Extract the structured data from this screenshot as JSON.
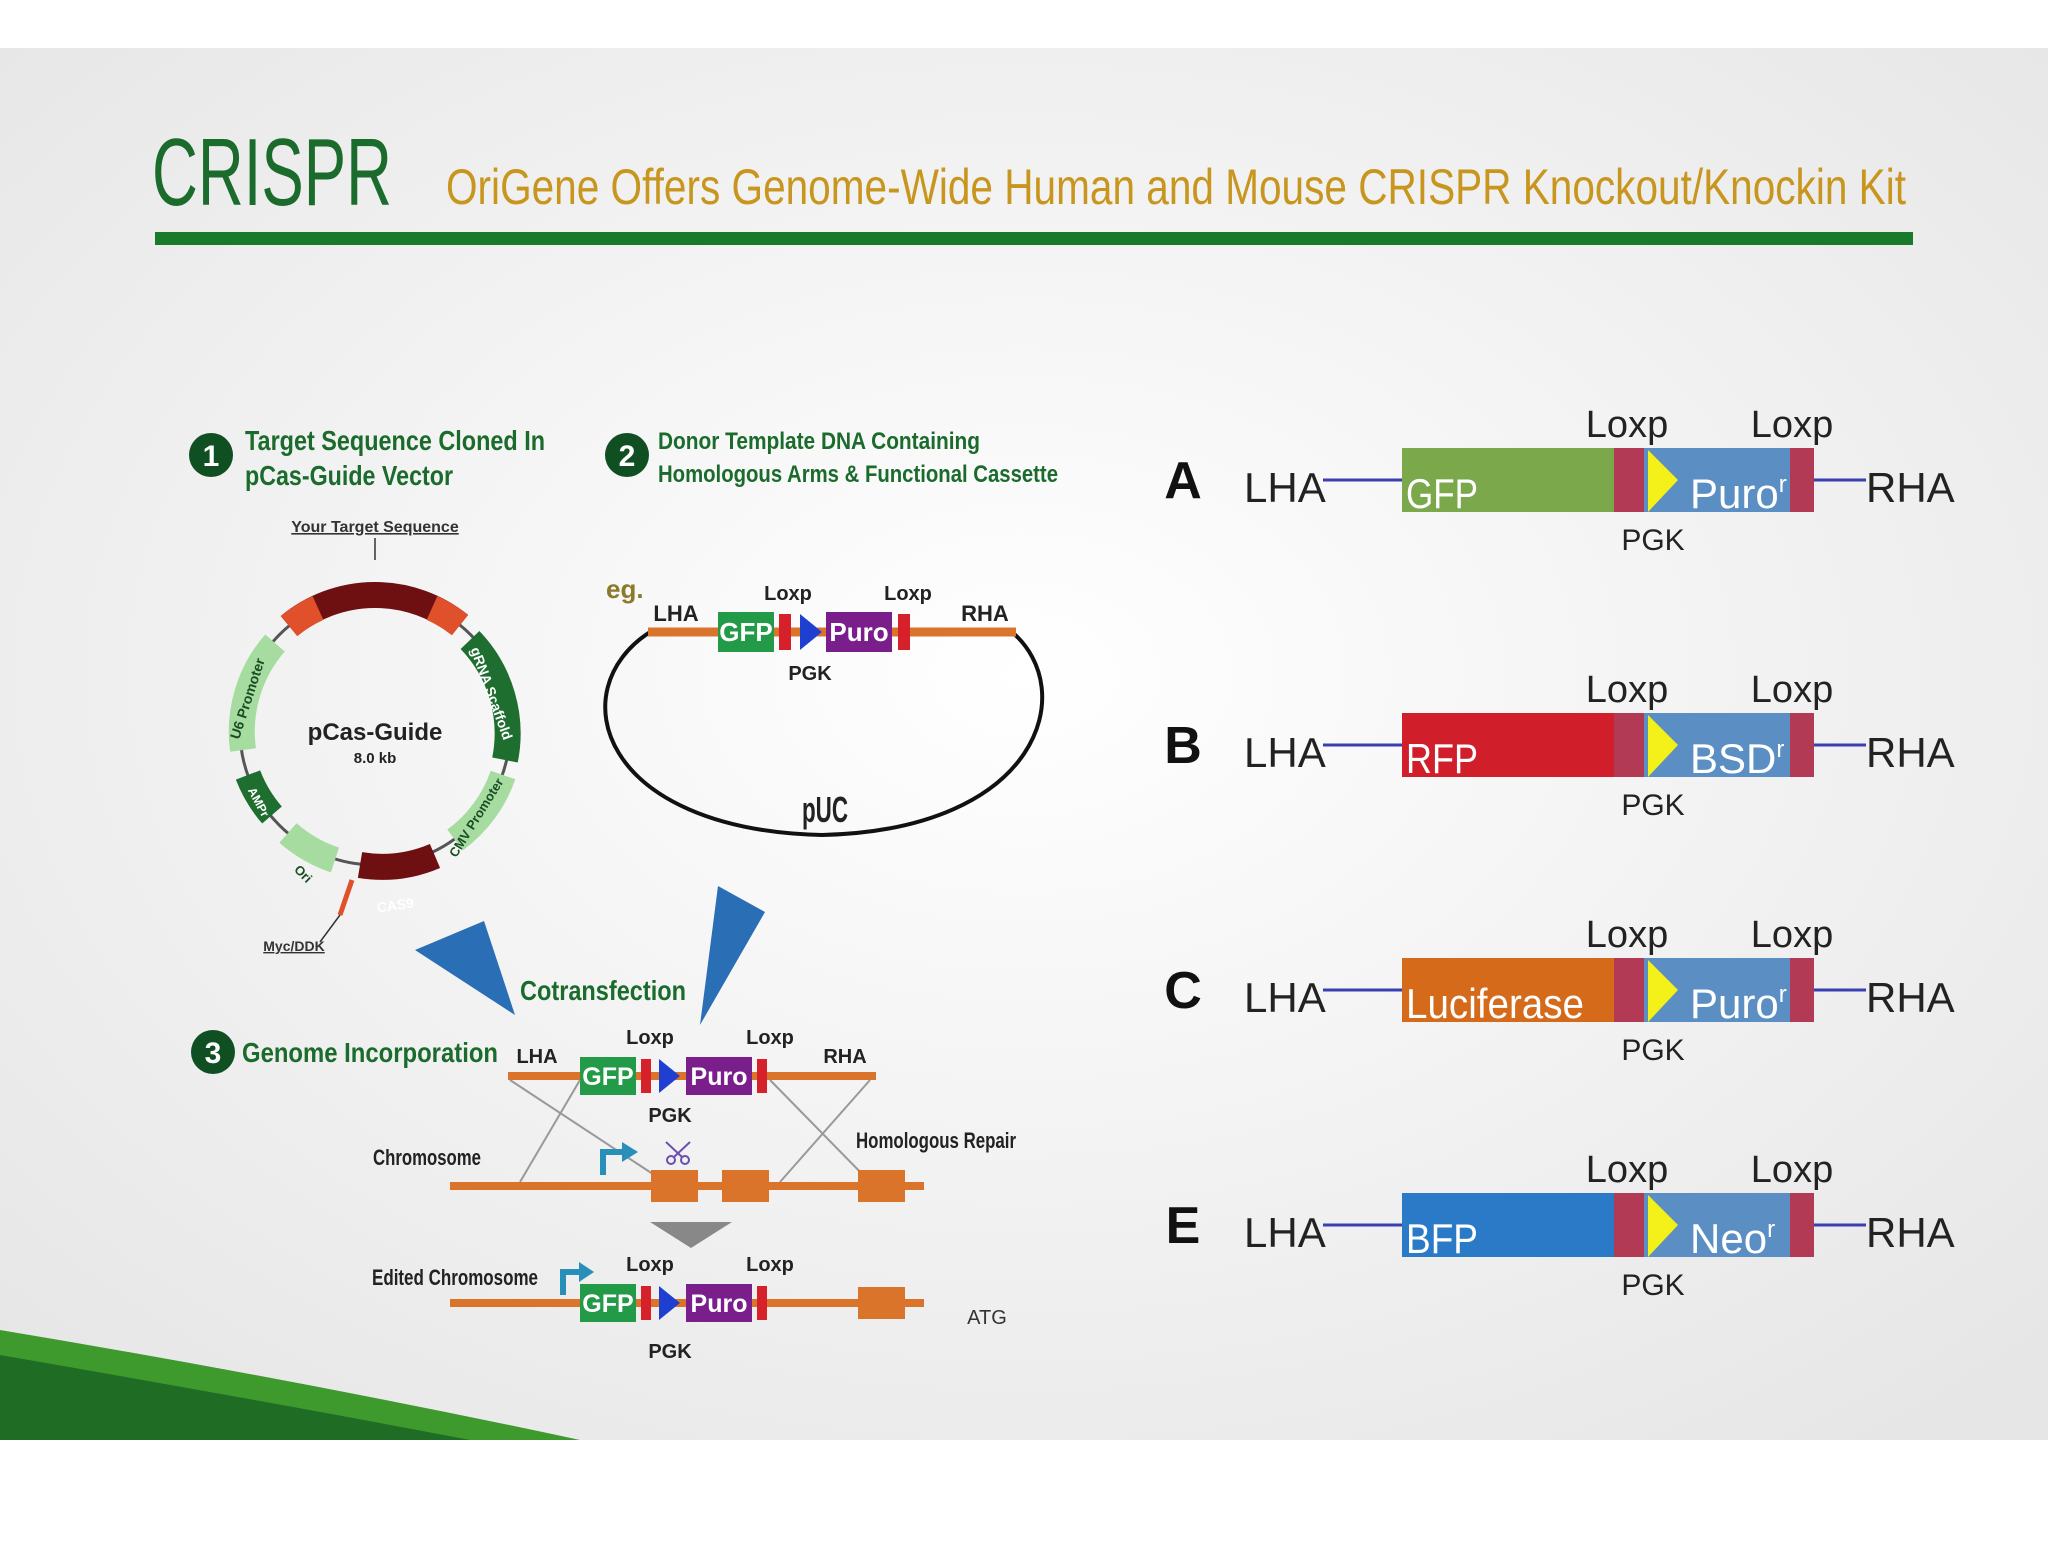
{
  "header": {
    "brand": "CRISPR",
    "subtitle": "OriGene Offers Genome-Wide Human and Mouse CRISPR Knockout/Knockin Kit"
  },
  "colors": {
    "brand_green": "#1a6b2c",
    "subtitle_gold": "#c8961e",
    "orange_line": "#d9742a",
    "gfp_green": "#239a47",
    "puro_purple": "#7a1e8c",
    "loxp_red": "#d6202a",
    "pgk_blue": "#1f3fd0",
    "arrow_blue": "#2a6fb5"
  },
  "step1": {
    "number": "1",
    "title_line1": "Target Sequence Cloned In",
    "title_line2": "pCas-Guide Vector",
    "target_label": "Your Target Sequence",
    "plasmid_name": "pCas-Guide",
    "plasmid_size": "8.0 kb",
    "features": {
      "u6": "U6 Promoter",
      "grna": "gRNA Scaffold",
      "cmv": "CMV Promoter",
      "cas9": "CAS9",
      "ori": "Ori",
      "ampr": "AMPr"
    },
    "myc_label": "Myc/DDK"
  },
  "step2": {
    "number": "2",
    "title_line1": "Donor Template DNA Containing",
    "title_line2": "Homologous Arms & Functional Cassette",
    "eg": "eg.",
    "lha": "LHA",
    "rha": "RHA",
    "gfp": "GFP",
    "puro": "Puro",
    "loxp": "Loxp",
    "pgk": "PGK",
    "backbone": "pUC"
  },
  "cotransfection": "Cotransfection",
  "step3": {
    "number": "3",
    "title": "Genome Incorporation",
    "lha": "LHA",
    "rha": "RHA",
    "gfp": "GFP",
    "puro": "Puro",
    "loxp": "Loxp",
    "pgk": "PGK",
    "chromosome": "Chromosome",
    "homologous_repair": "Homologous Repair",
    "edited_chromosome": "Edited Chromosome",
    "atg": "ATG"
  },
  "cassettes": [
    {
      "letter": "A",
      "marker": "GFP",
      "marker_color": "#7aa84a",
      "resistance": "Puro",
      "sup": "r",
      "lha": "LHA",
      "rha": "RHA",
      "loxp": "Loxp",
      "pgk": "PGK"
    },
    {
      "letter": "B",
      "marker": "RFP",
      "marker_color": "#d01f2a",
      "resistance": "BSD",
      "sup": "r",
      "lha": "LHA",
      "rha": "RHA",
      "loxp": "Loxp",
      "pgk": "PGK"
    },
    {
      "letter": "C",
      "marker": "Luciferase",
      "marker_color": "#d46a1a",
      "resistance": "Puro",
      "sup": "r",
      "lha": "LHA",
      "rha": "RHA",
      "loxp": "Loxp",
      "pgk": "PGK"
    },
    {
      "letter": "E",
      "marker": "BFP",
      "marker_color": "#2a7ac8",
      "resistance": "Neo",
      "sup": "r",
      "lha": "LHA",
      "rha": "RHA",
      "loxp": "Loxp",
      "pgk": "PGK"
    }
  ]
}
